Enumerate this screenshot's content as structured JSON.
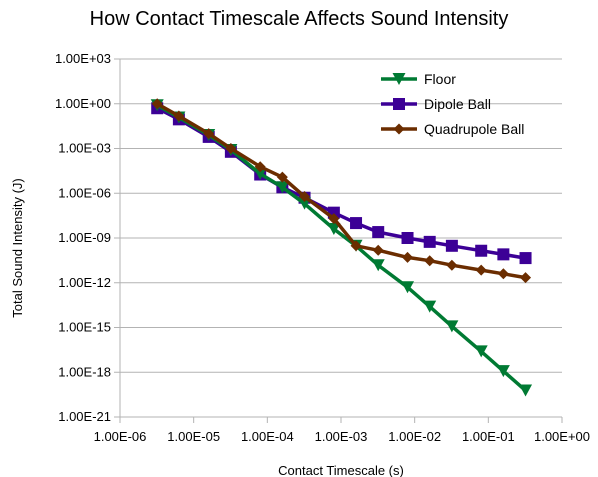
{
  "chart_data": {
    "type": "line",
    "title": "How Contact Timescale Affects Sound Intensity",
    "xlabel": "Contact Timescale (s)",
    "ylabel": "Total Sound Intensity (J)",
    "xscale": "log",
    "yscale": "log",
    "xlim": [
      1e-06,
      1
    ],
    "ylim": [
      1e-21,
      1000
    ],
    "grid": "horizontal",
    "legend_position": "top-right",
    "x_tick_labels": [
      "1.00E-06",
      "1.00E-05",
      "1.00E-04",
      "1.00E-03",
      "1.00E-02",
      "1.00E-01",
      "1.00E+00"
    ],
    "y_tick_labels": [
      "1.00E+03",
      "1.00E+00",
      "1.00E-03",
      "1.00E-06",
      "1.00E-09",
      "1.00E-12",
      "1.00E-15",
      "1.00E-18",
      "1.00E-21"
    ],
    "series": [
      {
        "name": "Floor",
        "color": "#007a33",
        "marker": "triangle-down",
        "points": [
          [
            3.2e-06,
            0.8
          ],
          [
            6.3e-06,
            0.12
          ],
          [
            1.6e-05,
            0.008
          ],
          [
            3.2e-05,
            0.0008
          ],
          [
            8e-05,
            2e-05
          ],
          [
            0.00016,
            2.5e-06
          ],
          [
            0.00032,
            2e-07
          ],
          [
            0.0008,
            4e-09
          ],
          [
            0.0016,
            3e-10
          ],
          [
            0.0032,
            1.5e-11
          ],
          [
            0.008,
            5e-13
          ],
          [
            0.016,
            2.5e-14
          ],
          [
            0.032,
            1.2e-15
          ],
          [
            0.08,
            2.5e-17
          ],
          [
            0.16,
            1.2e-18
          ],
          [
            0.32,
            6e-20
          ]
        ]
      },
      {
        "name": "Dipole Ball",
        "color": "#3c0096",
        "marker": "square",
        "points": [
          [
            3.2e-06,
            0.5
          ],
          [
            6.3e-06,
            0.09
          ],
          [
            1.6e-05,
            0.006
          ],
          [
            3.2e-05,
            0.0006
          ],
          [
            8e-05,
            1.8e-05
          ],
          [
            0.00016,
            2.5e-06
          ],
          [
            0.00032,
            5e-07
          ],
          [
            0.0008,
            5e-08
          ],
          [
            0.0016,
            1e-08
          ],
          [
            0.0032,
            2.5e-09
          ],
          [
            0.008,
            1e-09
          ],
          [
            0.016,
            5.5e-10
          ],
          [
            0.032,
            3e-10
          ],
          [
            0.08,
            1.4e-10
          ],
          [
            0.16,
            8e-11
          ],
          [
            0.32,
            4.5e-11
          ]
        ]
      },
      {
        "name": "Quadrupole Ball",
        "color": "#6b2d00",
        "marker": "diamond",
        "points": [
          [
            3.2e-06,
            1.0
          ],
          [
            6.3e-06,
            0.15
          ],
          [
            1.6e-05,
            0.01
          ],
          [
            3.2e-05,
            0.001
          ],
          [
            8e-05,
            6e-05
          ],
          [
            0.00016,
            1.2e-05
          ],
          [
            0.00032,
            6e-07
          ],
          [
            0.0008,
            2e-08
          ],
          [
            0.0016,
            3e-10
          ],
          [
            0.0032,
            1.5e-10
          ],
          [
            0.008,
            5e-11
          ],
          [
            0.016,
            3e-11
          ],
          [
            0.032,
            1.5e-11
          ],
          [
            0.08,
            7e-12
          ],
          [
            0.16,
            4e-12
          ],
          [
            0.32,
            2.2e-12
          ]
        ]
      }
    ]
  }
}
